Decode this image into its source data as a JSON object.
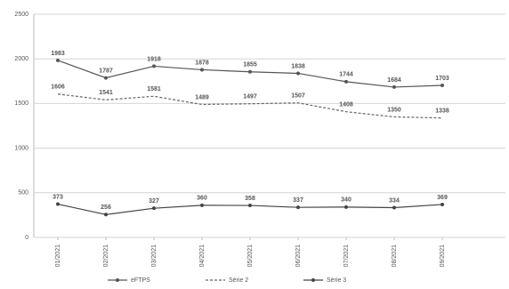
{
  "chart_data": {
    "type": "line",
    "categories": [
      "01/2021",
      "02/2021",
      "03/2021",
      "04/2021",
      "05/2021",
      "06/2021",
      "07/2021",
      "08/2021",
      "09/2021"
    ],
    "series": [
      {
        "name": "eFTPS",
        "color": "#555555",
        "dash": "none",
        "values": [
          1983,
          1787,
          1918,
          1878,
          1855,
          1838,
          1744,
          1684,
          1703
        ]
      },
      {
        "name": "Série 2",
        "color": "#666666",
        "dash": "3,2",
        "values": [
          1606,
          1541,
          1581,
          1489,
          1497,
          1507,
          1408,
          1350,
          1338
        ]
      },
      {
        "name": "Série 3",
        "color": "#444444",
        "dash": "none",
        "values": [
          373,
          256,
          327,
          360,
          358,
          337,
          340,
          334,
          369
        ]
      }
    ],
    "ylim": [
      0,
      2500
    ],
    "yticks": [
      0,
      500,
      1000,
      1500,
      2000,
      2500
    ],
    "grid": true
  }
}
